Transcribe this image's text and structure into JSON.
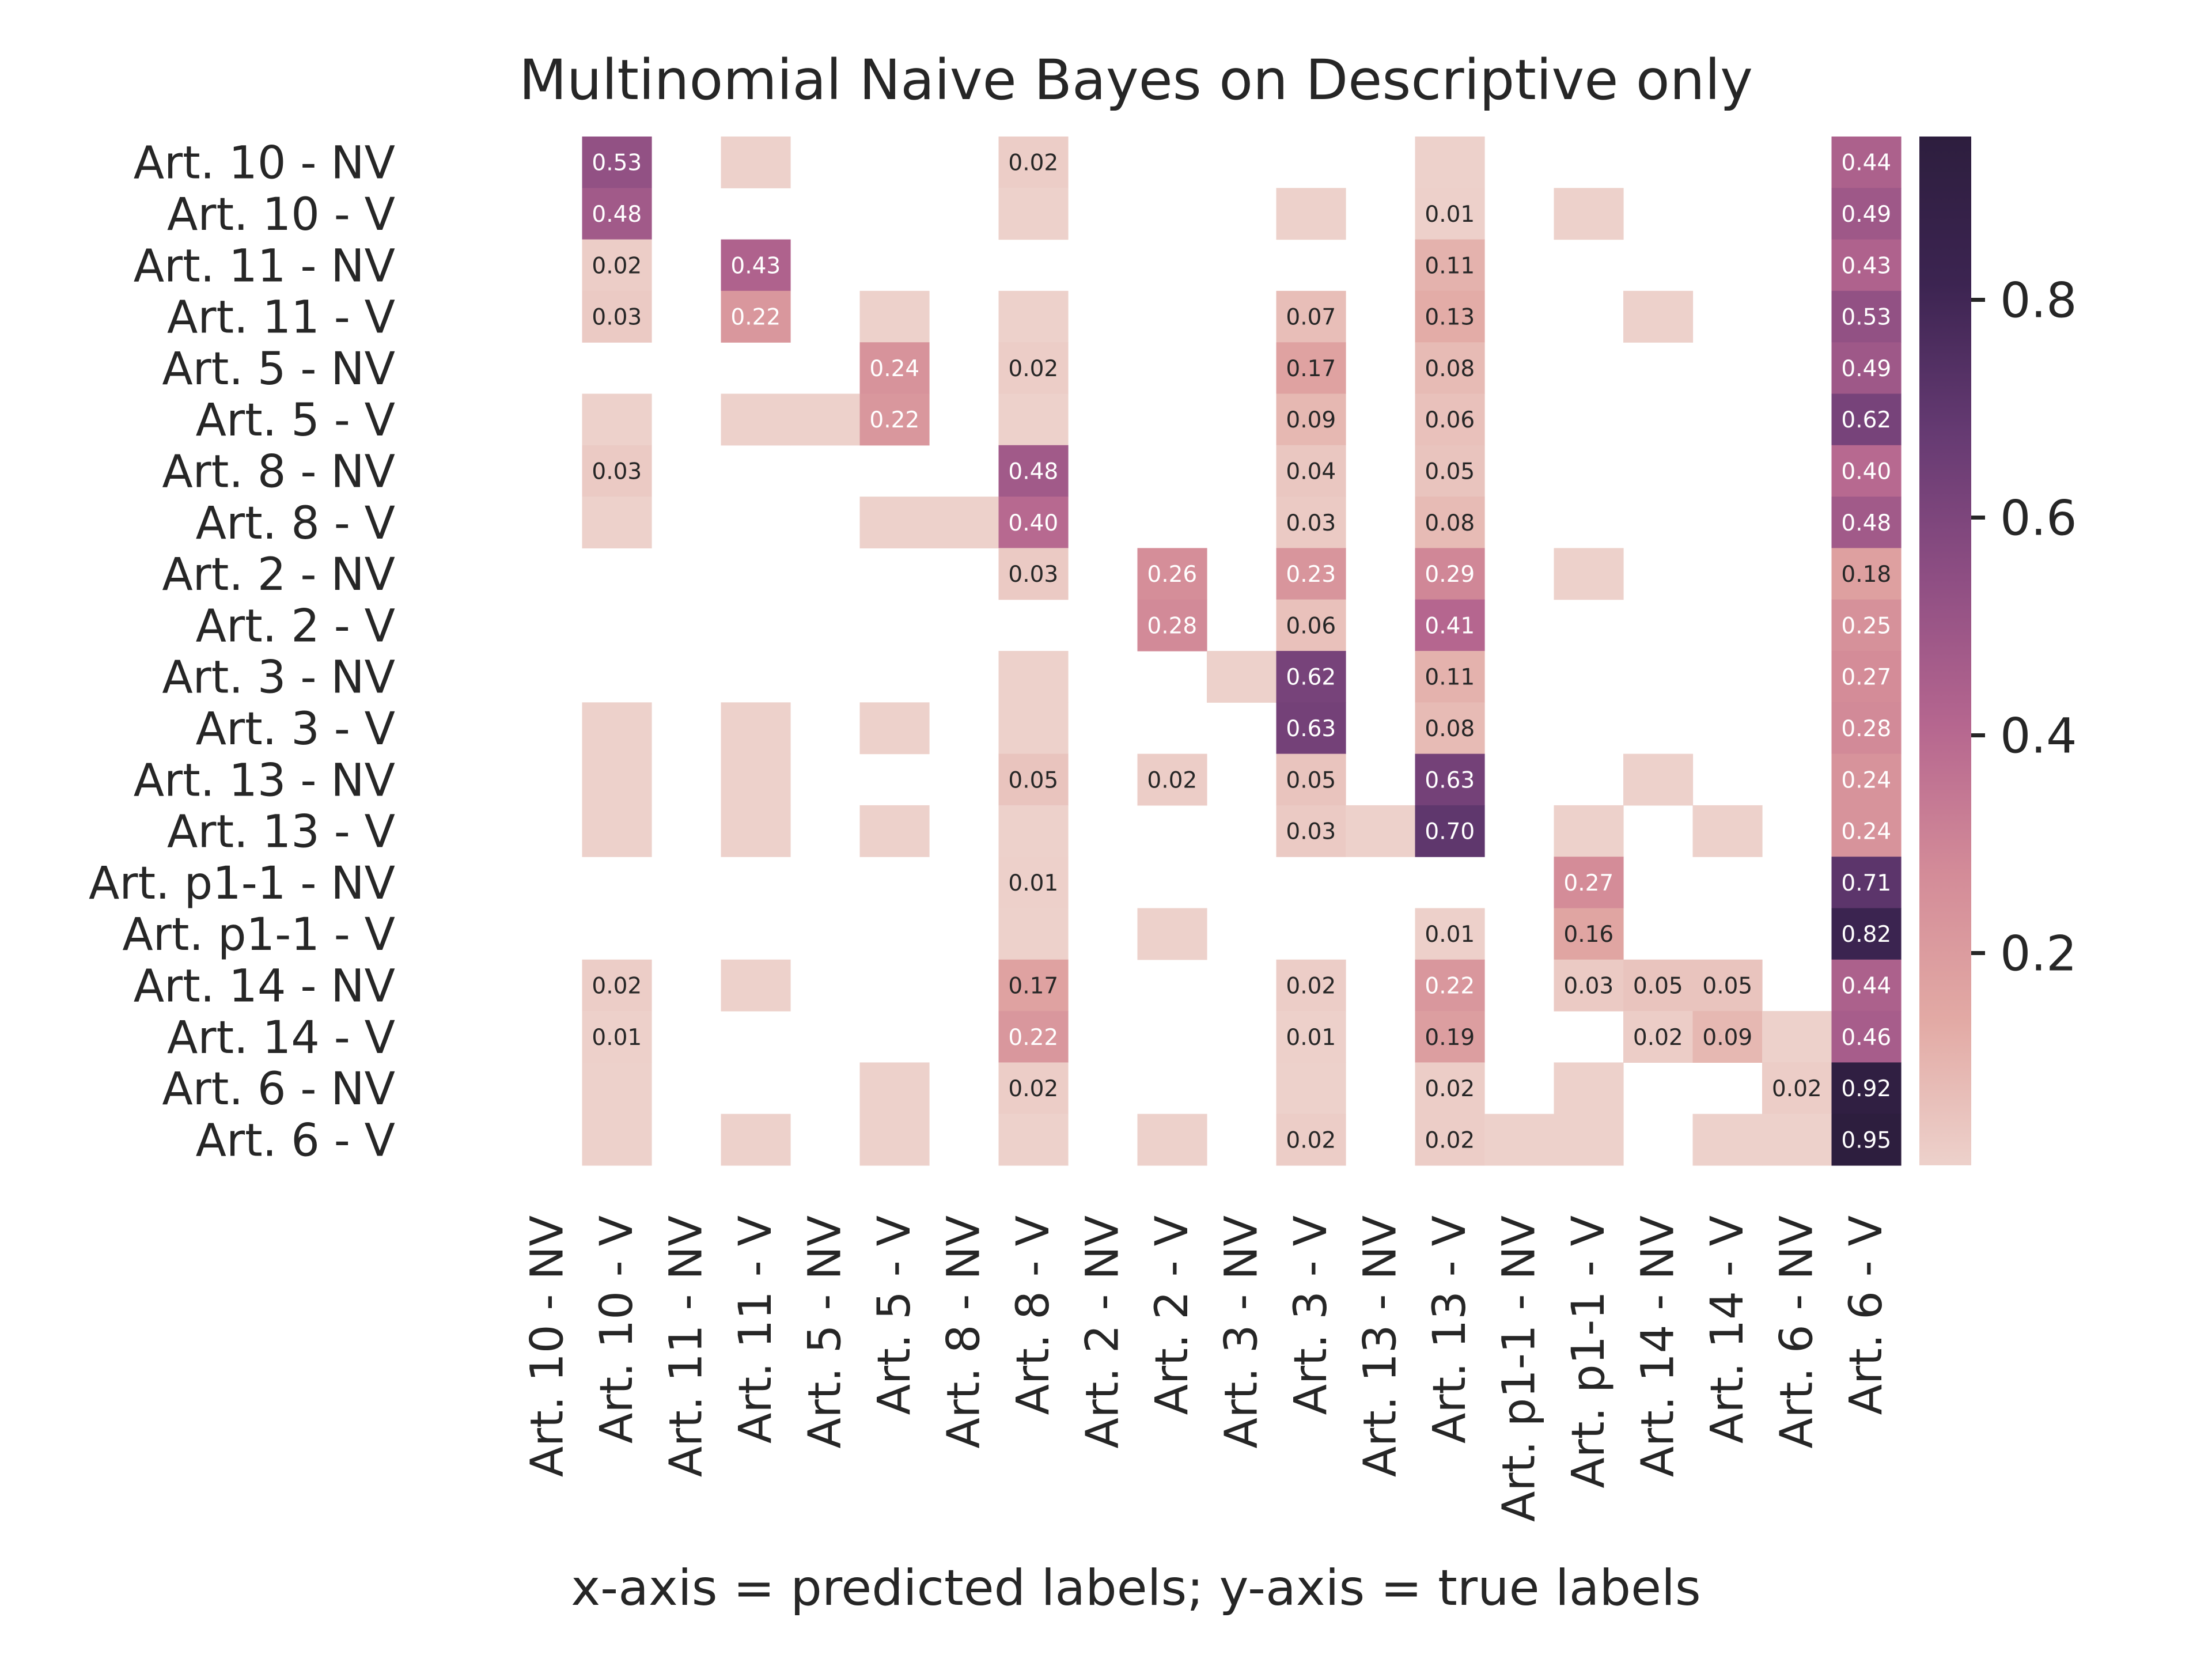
{
  "chart_data": {
    "type": "heatmap",
    "title": "Multinomial Naive Bayes on Descriptive only",
    "xlabel": "x-axis = predicted labels; y-axis = true labels",
    "ylabel": "",
    "x_labels": [
      "Art. 10 - NV",
      "Art. 10 - V",
      "Art. 11 - NV",
      "Art. 11 - V",
      "Art. 5 - NV",
      "Art. 5 - V",
      "Art. 8 - NV",
      "Art. 8 - V",
      "Art. 2 - NV",
      "Art. 2 - V",
      "Art. 3 - NV",
      "Art. 3 - V",
      "Art. 13 - NV",
      "Art. 13 - V",
      "Art. p1-1 - NV",
      "Art. p1-1 - V",
      "Art. 14 - NV",
      "Art. 14 - V",
      "Art. 6 - NV",
      "Art. 6 - V"
    ],
    "y_labels": [
      "Art. 10 - NV",
      "Art. 10 - V",
      "Art. 11 - NV",
      "Art. 11 - V",
      "Art. 5 - NV",
      "Art. 5 - V",
      "Art. 8 - NV",
      "Art. 8 - V",
      "Art. 2 - NV",
      "Art. 2 - V",
      "Art. 3 - NV",
      "Art. 3 - V",
      "Art. 13 - NV",
      "Art. 13 - V",
      "Art. p1-1 - NV",
      "Art. p1-1 - V",
      "Art. 14 - NV",
      "Art. 14 - V",
      "Art. 6 - NV",
      "Art. 6 - V"
    ],
    "values": [
      [
        0,
        0.53,
        0,
        0.005,
        0,
        0,
        0,
        0.02,
        0,
        0,
        0,
        0,
        0,
        0.005,
        0,
        0,
        0,
        0,
        0,
        0.44
      ],
      [
        0,
        0.48,
        0,
        0,
        0,
        0,
        0,
        0.005,
        0,
        0,
        0,
        0.005,
        0,
        0.01,
        0,
        0.005,
        0,
        0,
        0,
        0.49
      ],
      [
        0,
        0.02,
        0,
        0.43,
        0,
        0,
        0,
        0,
        0,
        0,
        0,
        0,
        0,
        0.11,
        0,
        0,
        0,
        0,
        0,
        0.43
      ],
      [
        0,
        0.03,
        0,
        0.22,
        0,
        0.005,
        0,
        0.005,
        0,
        0,
        0,
        0.07,
        0,
        0.13,
        0,
        0,
        0.005,
        0,
        0,
        0.53
      ],
      [
        0,
        0,
        0,
        0,
        0,
        0.24,
        0,
        0.02,
        0,
        0,
        0,
        0.17,
        0,
        0.08,
        0,
        0,
        0,
        0,
        0,
        0.49
      ],
      [
        0,
        0.005,
        0,
        0.005,
        0.005,
        0.22,
        0,
        0.005,
        0,
        0,
        0,
        0.09,
        0,
        0.06,
        0,
        0,
        0,
        0,
        0,
        0.62
      ],
      [
        0,
        0.03,
        0,
        0,
        0,
        0,
        0,
        0.48,
        0,
        0,
        0,
        0.04,
        0,
        0.05,
        0,
        0,
        0,
        0,
        0,
        0.4
      ],
      [
        0,
        0.005,
        0,
        0,
        0,
        0.005,
        0.005,
        0.4,
        0,
        0,
        0,
        0.03,
        0,
        0.08,
        0,
        0,
        0,
        0,
        0,
        0.48
      ],
      [
        0,
        0,
        0,
        0,
        0,
        0,
        0,
        0.03,
        0,
        0.26,
        0,
        0.23,
        0,
        0.29,
        0,
        0.005,
        0,
        0,
        0,
        0.18
      ],
      [
        0,
        0,
        0,
        0,
        0,
        0,
        0,
        0,
        0,
        0.28,
        0,
        0.06,
        0,
        0.41,
        0,
        0,
        0,
        0,
        0,
        0.25
      ],
      [
        0,
        0,
        0,
        0,
        0,
        0,
        0,
        0.005,
        0,
        0,
        0.005,
        0.62,
        0,
        0.11,
        0,
        0,
        0,
        0,
        0,
        0.27
      ],
      [
        0,
        0.005,
        0,
        0.005,
        0,
        0.005,
        0,
        0.005,
        0,
        0,
        0,
        0.63,
        0,
        0.08,
        0,
        0,
        0,
        0,
        0,
        0.28
      ],
      [
        0,
        0.005,
        0,
        0.005,
        0,
        0,
        0,
        0.05,
        0,
        0.02,
        0,
        0.05,
        0,
        0.63,
        0,
        0,
        0.005,
        0,
        0,
        0.24
      ],
      [
        0,
        0.005,
        0,
        0.005,
        0,
        0.005,
        0,
        0.005,
        0,
        0,
        0,
        0.03,
        0.005,
        0.7,
        0,
        0.005,
        0,
        0.005,
        0,
        0.24
      ],
      [
        0,
        0,
        0,
        0,
        0,
        0,
        0,
        0.01,
        0,
        0,
        0,
        0,
        0,
        0,
        0,
        0.27,
        0,
        0,
        0,
        0.71
      ],
      [
        0,
        0,
        0,
        0,
        0,
        0,
        0,
        0.005,
        0,
        0.005,
        0,
        0,
        0,
        0.01,
        0,
        0.16,
        0,
        0,
        0,
        0.82
      ],
      [
        0,
        0.02,
        0,
        0.005,
        0,
        0,
        0,
        0.17,
        0,
        0,
        0,
        0.02,
        0,
        0.22,
        0,
        0.03,
        0.05,
        0.05,
        0,
        0.44
      ],
      [
        0,
        0.01,
        0,
        0,
        0,
        0,
        0,
        0.22,
        0,
        0,
        0,
        0.01,
        0,
        0.19,
        0,
        0,
        0.02,
        0.09,
        0.005,
        0.46
      ],
      [
        0,
        0.005,
        0,
        0,
        0,
        0.005,
        0,
        0.02,
        0,
        0,
        0,
        0.005,
        0,
        0.02,
        0,
        0.005,
        0,
        0,
        0.02,
        0.92
      ],
      [
        0,
        0.005,
        0,
        0.005,
        0,
        0.005,
        0,
        0.005,
        0,
        0.005,
        0,
        0.02,
        0,
        0.02,
        0.005,
        0.005,
        0,
        0.005,
        0.005,
        0.95
      ]
    ],
    "cell_labels": [
      [
        "",
        "0.53",
        "",
        "",
        "",
        "",
        "",
        "0.02",
        "",
        "",
        "",
        "",
        "",
        "",
        "",
        "",
        "",
        "",
        "",
        "0.44"
      ],
      [
        "",
        "0.48",
        "",
        "",
        "",
        "",
        "",
        "",
        "",
        "",
        "",
        "",
        "",
        "0.01",
        "",
        "",
        "",
        "",
        "",
        "0.49"
      ],
      [
        "",
        "0.02",
        "",
        "0.43",
        "",
        "",
        "",
        "",
        "",
        "",
        "",
        "",
        "",
        "0.11",
        "",
        "",
        "",
        "",
        "",
        "0.43"
      ],
      [
        "",
        "0.03",
        "",
        "0.22",
        "",
        "",
        "",
        "",
        "",
        "",
        "",
        "0.07",
        "",
        "0.13",
        "",
        "",
        "",
        "",
        "",
        "0.53"
      ],
      [
        "",
        "",
        "",
        "",
        "",
        "0.24",
        "",
        "0.02",
        "",
        "",
        "",
        "0.17",
        "",
        "0.08",
        "",
        "",
        "",
        "",
        "",
        "0.49"
      ],
      [
        "",
        "",
        "",
        "",
        "",
        "0.22",
        "",
        "",
        "",
        "",
        "",
        "0.09",
        "",
        "0.06",
        "",
        "",
        "",
        "",
        "",
        "0.62"
      ],
      [
        "",
        "0.03",
        "",
        "",
        "",
        "",
        "",
        "0.48",
        "",
        "",
        "",
        "0.04",
        "",
        "0.05",
        "",
        "",
        "",
        "",
        "",
        "0.40"
      ],
      [
        "",
        "",
        "",
        "",
        "",
        "",
        "",
        "0.40",
        "",
        "",
        "",
        "0.03",
        "",
        "0.08",
        "",
        "",
        "",
        "",
        "",
        "0.48"
      ],
      [
        "",
        "",
        "",
        "",
        "",
        "",
        "",
        "0.03",
        "",
        "0.26",
        "",
        "0.23",
        "",
        "0.29",
        "",
        "",
        "",
        "",
        "",
        "0.18"
      ],
      [
        "",
        "",
        "",
        "",
        "",
        "",
        "",
        "",
        "",
        "0.28",
        "",
        "0.06",
        "",
        "0.41",
        "",
        "",
        "",
        "",
        "",
        "0.25"
      ],
      [
        "",
        "",
        "",
        "",
        "",
        "",
        "",
        "",
        "",
        "",
        "",
        "0.62",
        "",
        "0.11",
        "",
        "",
        "",
        "",
        "",
        "0.27"
      ],
      [
        "",
        "",
        "",
        "",
        "",
        "",
        "",
        "",
        "",
        "",
        "",
        "0.63",
        "",
        "0.08",
        "",
        "",
        "",
        "",
        "",
        "0.28"
      ],
      [
        "",
        "",
        "",
        "",
        "",
        "",
        "",
        "0.05",
        "",
        "0.02",
        "",
        "0.05",
        "",
        "0.63",
        "",
        "",
        "",
        "",
        "",
        "0.24"
      ],
      [
        "",
        "",
        "",
        "",
        "",
        "",
        "",
        "",
        "",
        "",
        "",
        "0.03",
        "",
        "0.70",
        "",
        "",
        "",
        "",
        "",
        "0.24"
      ],
      [
        "",
        "",
        "",
        "",
        "",
        "",
        "",
        "0.01",
        "",
        "",
        "",
        "",
        "",
        "",
        "",
        "0.27",
        "",
        "",
        "",
        "0.71"
      ],
      [
        "",
        "",
        "",
        "",
        "",
        "",
        "",
        "",
        "",
        "",
        "",
        "",
        "",
        "0.01",
        "",
        "0.16",
        "",
        "",
        "",
        "0.82"
      ],
      [
        "",
        "0.02",
        "",
        "",
        "",
        "",
        "",
        "0.17",
        "",
        "",
        "",
        "0.02",
        "",
        "0.22",
        "",
        "0.03",
        "0.05",
        "0.05",
        "",
        "0.44"
      ],
      [
        "",
        "0.01",
        "",
        "",
        "",
        "",
        "",
        "0.22",
        "",
        "",
        "",
        "0.01",
        "",
        "0.19",
        "",
        "",
        "0.02",
        "0.09",
        "",
        "0.46"
      ],
      [
        "",
        "",
        "",
        "",
        "",
        "",
        "",
        "0.02",
        "",
        "",
        "",
        "",
        "",
        "0.02",
        "",
        "",
        "",
        "",
        "0.02",
        "0.92"
      ],
      [
        "",
        "",
        "",
        "",
        "",
        "",
        "",
        "",
        "",
        "",
        "",
        "0.02",
        "",
        "0.02",
        "",
        "",
        "",
        "",
        "",
        "0.95"
      ]
    ],
    "colorbar": {
      "min": 0.005,
      "max": 0.95,
      "ticks": [
        0.2,
        0.4,
        0.6,
        0.8
      ],
      "tick_labels": [
        "0.2",
        "0.4",
        "0.6",
        "0.8"
      ]
    },
    "colormap": [
      "#edd1cb",
      "#e2a9a4",
      "#d38b98",
      "#b5668f",
      "#8e4e83",
      "#653a72",
      "#3c2451",
      "#2d1e3e"
    ],
    "empty_color": "#ffffff",
    "grid": false,
    "legend": "colorbar-right"
  }
}
